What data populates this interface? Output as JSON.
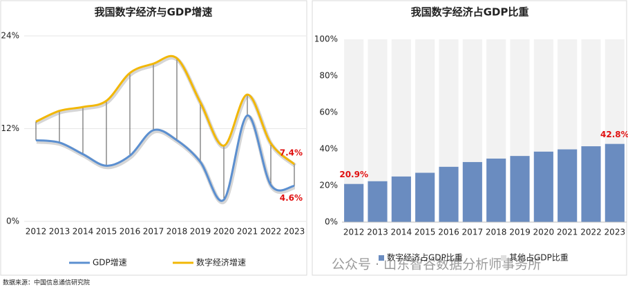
{
  "chart_data": [
    {
      "type": "line",
      "title": "我国数字经济与GDP增速",
      "categories": [
        "2012",
        "2013",
        "2014",
        "2015",
        "2016",
        "2017",
        "2018",
        "2019",
        "2020",
        "2021",
        "2022",
        "2023"
      ],
      "series": [
        {
          "name": "GDP增速",
          "color": "#5b8fd0",
          "values": [
            10.5,
            10.2,
            8.7,
            7.2,
            8.5,
            11.8,
            10.5,
            7.7,
            2.8,
            13.7,
            4.7,
            4.6
          ],
          "value_labels": [
            null,
            null,
            null,
            null,
            null,
            null,
            null,
            null,
            null,
            null,
            null,
            "4.6%"
          ]
        },
        {
          "name": "数字经济增速",
          "color": "#f2b705",
          "values": [
            12.9,
            14.3,
            14.8,
            15.6,
            19.2,
            20.4,
            21.1,
            15.4,
            9.8,
            16.4,
            10.1,
            7.4
          ],
          "value_labels": [
            null,
            null,
            null,
            null,
            null,
            null,
            null,
            null,
            null,
            null,
            null,
            "7.4%"
          ]
        }
      ],
      "ylim": [
        0,
        24
      ],
      "yticks": [
        {
          "value": 0,
          "label": "0%"
        },
        {
          "value": 12,
          "label": "12%"
        },
        {
          "value": 24,
          "label": "24%"
        }
      ],
      "grid": true
    },
    {
      "type": "bar",
      "stacked": true,
      "title": "我国数字经济占GDP比重",
      "categories": [
        "2012",
        "2013",
        "2014",
        "2015",
        "2016",
        "2017",
        "2018",
        "2019",
        "2020",
        "2021",
        "2022",
        "2023"
      ],
      "series": [
        {
          "name": "数字经济占GDP比重",
          "color": "#6a8cc0",
          "values": [
            20.9,
            22.4,
            25.0,
            27.0,
            30.3,
            32.9,
            34.8,
            36.2,
            38.6,
            39.8,
            41.5,
            42.8
          ],
          "value_labels": [
            "20.9%",
            null,
            null,
            null,
            null,
            null,
            null,
            null,
            null,
            null,
            null,
            "42.8%"
          ]
        },
        {
          "name": "其他占GDP比重",
          "color": "#f2f2f2",
          "values": [
            79.1,
            77.6,
            75.0,
            73.0,
            69.7,
            67.1,
            65.2,
            63.8,
            61.4,
            60.2,
            58.5,
            57.2
          ]
        }
      ],
      "ylim": [
        0,
        100
      ],
      "yticks": [
        {
          "value": 0,
          "label": "0%"
        },
        {
          "value": 20,
          "label": "20%"
        },
        {
          "value": 40,
          "label": "40%"
        },
        {
          "value": 60,
          "label": "60%"
        },
        {
          "value": 80,
          "label": "80%"
        },
        {
          "value": 100,
          "label": "100%"
        }
      ],
      "grid": false
    }
  ],
  "source": "数据来源：中国信息通信研究院",
  "watermark": "公众号 · 山东智谷数据分析师事务所"
}
